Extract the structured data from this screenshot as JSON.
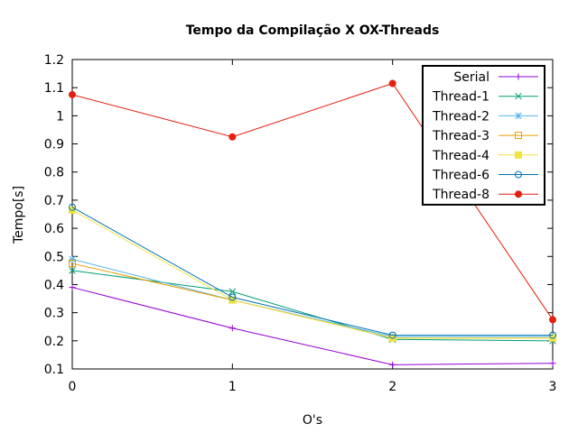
{
  "chart_data": {
    "type": "line",
    "title": "Tempo da Compilação X OX-Threads",
    "xlabel": "O's",
    "ylabel": "Tempo[s]",
    "x": [
      0,
      1,
      2,
      3
    ],
    "xticks": [
      "0",
      "1",
      "2",
      "3"
    ],
    "xlim": [
      0,
      3
    ],
    "ylim": [
      0.1,
      1.2
    ],
    "yticks": [
      "0.1",
      "0.2",
      "0.3",
      "0.4",
      "0.5",
      "0.6",
      "0.7",
      "0.8",
      "0.9",
      "1",
      "1.1",
      "1.2"
    ],
    "grid": false,
    "legend_position": "top-right",
    "series": [
      {
        "name": "Serial",
        "values": [
          0.39,
          0.245,
          0.115,
          0.12
        ],
        "color": "#9400d3",
        "marker": "plus"
      },
      {
        "name": "Thread-1",
        "values": [
          0.45,
          0.375,
          0.205,
          0.2
        ],
        "color": "#009e73",
        "marker": "cross"
      },
      {
        "name": "Thread-2",
        "values": [
          0.49,
          0.345,
          0.215,
          0.215
        ],
        "color": "#56b4e9",
        "marker": "star"
      },
      {
        "name": "Thread-3",
        "values": [
          0.475,
          0.345,
          0.21,
          0.21
        ],
        "color": "#e69f00",
        "marker": "square-open"
      },
      {
        "name": "Thread-4",
        "values": [
          0.665,
          0.345,
          0.21,
          0.21
        ],
        "color": "#f0e442",
        "marker": "square-filled"
      },
      {
        "name": "Thread-6",
        "values": [
          0.675,
          0.355,
          0.22,
          0.22
        ],
        "color": "#0072b2",
        "marker": "circle-open"
      },
      {
        "name": "Thread-8",
        "values": [
          1.075,
          0.925,
          1.115,
          0.275
        ],
        "color": "#e51e10",
        "marker": "circle-filled"
      }
    ]
  }
}
